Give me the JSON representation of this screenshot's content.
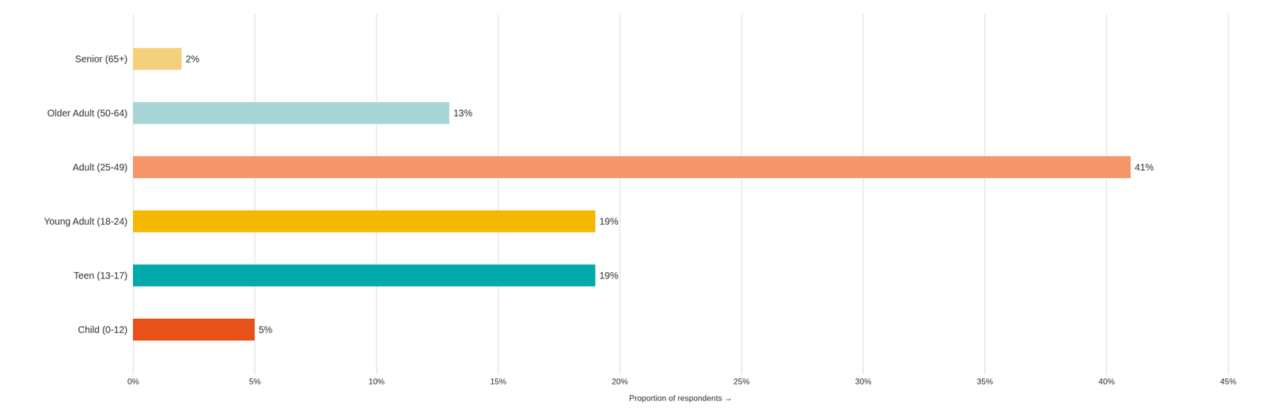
{
  "chart_data": {
    "type": "bar",
    "orientation": "horizontal",
    "categories": [
      "Child (0-12)",
      "Teen (13-17)",
      "Young Adult (18-24)",
      "Adult (25-49)",
      "Older Adult (50-64)",
      "Senior (65+)"
    ],
    "values": [
      5,
      19,
      19,
      41,
      13,
      2
    ],
    "value_labels": [
      "5%",
      "19%",
      "19%",
      "41%",
      "13%",
      "2%"
    ],
    "colors": [
      "#E8521A",
      "#00AAAA",
      "#F5B800",
      "#F4956A",
      "#A8D5D5",
      "#F5D07A"
    ],
    "xlabel": "Proportion of respondents",
    "xlim": [
      0,
      45
    ],
    "xticks": [
      {
        "value": 0,
        "label": "0%"
      },
      {
        "value": 5,
        "label": "5%"
      },
      {
        "value": 10,
        "label": "10%"
      },
      {
        "value": 15,
        "label": "15%"
      },
      {
        "value": 20,
        "label": "20%"
      },
      {
        "value": 25,
        "label": "25%"
      },
      {
        "value": 30,
        "label": "30%"
      },
      {
        "value": 35,
        "label": "35%"
      },
      {
        "value": 40,
        "label": "40%"
      },
      {
        "value": 45,
        "label": "45%"
      }
    ],
    "grid": true,
    "data_labels": true
  }
}
